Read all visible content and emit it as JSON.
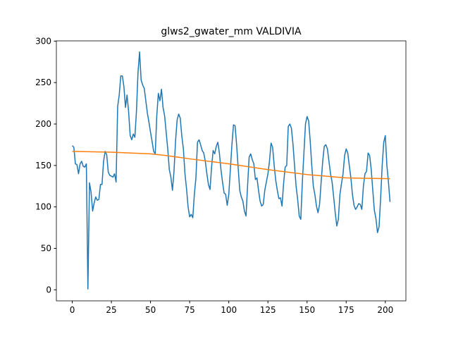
{
  "chart_data": {
    "type": "line",
    "title": "glws2_gwater_mm VALDIVIA",
    "x": [
      0,
      1,
      2,
      3,
      4,
      5,
      6,
      7,
      8,
      9,
      10,
      11,
      12,
      13,
      14,
      15,
      16,
      17,
      18,
      19,
      20,
      21,
      22,
      23,
      24,
      25,
      26,
      27,
      28,
      29,
      30,
      31,
      32,
      33,
      34,
      35,
      36,
      37,
      38,
      39,
      40,
      41,
      42,
      43,
      44,
      45,
      46,
      47,
      48,
      49,
      50,
      51,
      52,
      53,
      54,
      55,
      56,
      57,
      58,
      59,
      60,
      61,
      62,
      63,
      64,
      65,
      66,
      67,
      68,
      69,
      70,
      71,
      72,
      73,
      74,
      75,
      76,
      77,
      78,
      79,
      80,
      81,
      82,
      83,
      84,
      85,
      86,
      87,
      88,
      89,
      90,
      91,
      92,
      93,
      94,
      95,
      96,
      97,
      98,
      99,
      100,
      101,
      102,
      103,
      104,
      105,
      106,
      107,
      108,
      109,
      110,
      111,
      112,
      113,
      114,
      115,
      116,
      117,
      118,
      119,
      120,
      121,
      122,
      123,
      124,
      125,
      126,
      127,
      128,
      129,
      130,
      131,
      132,
      133,
      134,
      135,
      136,
      137,
      138,
      139,
      140,
      141,
      142,
      143,
      144,
      145,
      146,
      147,
      148,
      149,
      150,
      151,
      152,
      153,
      154,
      155,
      156,
      157,
      158,
      159,
      160,
      161,
      162,
      163,
      164,
      165,
      166,
      167,
      168,
      169,
      170,
      171,
      172,
      173,
      174,
      175,
      176,
      177,
      178,
      179,
      180,
      181,
      182,
      183,
      184,
      185,
      186,
      187,
      188,
      189,
      190,
      191,
      192,
      193,
      194,
      195,
      196,
      197,
      198,
      199,
      200,
      201,
      202,
      203
    ],
    "series": [
      {
        "color": "#1f77b4",
        "values": [
          174,
          172,
          152,
          151,
          140,
          152,
          155,
          149,
          148,
          152,
          1,
          129,
          118,
          95,
          105,
          112,
          108,
          109,
          127,
          127,
          155,
          167,
          163,
          142,
          138,
          137,
          136,
          140,
          130,
          221,
          235,
          258,
          258,
          245,
          220,
          235,
          215,
          186,
          181,
          188,
          184,
          215,
          262,
          287,
          253,
          247,
          243,
          228,
          213,
          202,
          190,
          179,
          167,
          164,
          210,
          237,
          228,
          242,
          220,
          210,
          190,
          170,
          145,
          136,
          120,
          143,
          180,
          205,
          212,
          207,
          185,
          170,
          140,
          122,
          100,
          88,
          91,
          87,
          115,
          135,
          178,
          181,
          175,
          168,
          165,
          155,
          140,
          127,
          121,
          148,
          168,
          164,
          173,
          178,
          165,
          145,
          130,
          117,
          115,
          102,
          115,
          145,
          175,
          199,
          198,
          175,
          147,
          120,
          112,
          107,
          95,
          89,
          125,
          160,
          164,
          157,
          152,
          133,
          135,
          120,
          107,
          101,
          103,
          120,
          130,
          140,
          155,
          177,
          172,
          150,
          132,
          120,
          110,
          111,
          101,
          128,
          148,
          150,
          197,
          200,
          195,
          176,
          150,
          125,
          109,
          89,
          85,
          130,
          165,
          200,
          209,
          204,
          180,
          150,
          125,
          115,
          101,
          93,
          103,
          130,
          155,
          173,
          175,
          170,
          155,
          140,
          130,
          112,
          93,
          77,
          85,
          115,
          128,
          140,
          162,
          170,
          165,
          150,
          135,
          115,
          102,
          97,
          100,
          104,
          103,
          97,
          125,
          140,
          143,
          165,
          162,
          145,
          120,
          96,
          86,
          69,
          76,
          110,
          150,
          178,
          186,
          150,
          130,
          106
        ]
      },
      {
        "color": "#ff7f0e",
        "x": [
          0,
          25,
          50,
          60,
          75,
          100,
          125,
          150,
          175,
          203
        ],
        "values": [
          167,
          166,
          164,
          162,
          158,
          152,
          145,
          139,
          135,
          134
        ]
      }
    ],
    "xlim": [
      -10.15,
      213.15
    ],
    "ylim": [
      -13.3,
      300.3
    ],
    "xticks": [
      0,
      25,
      50,
      75,
      100,
      125,
      150,
      175,
      200
    ],
    "yticks": [
      0,
      50,
      100,
      150,
      200,
      250,
      300
    ]
  }
}
